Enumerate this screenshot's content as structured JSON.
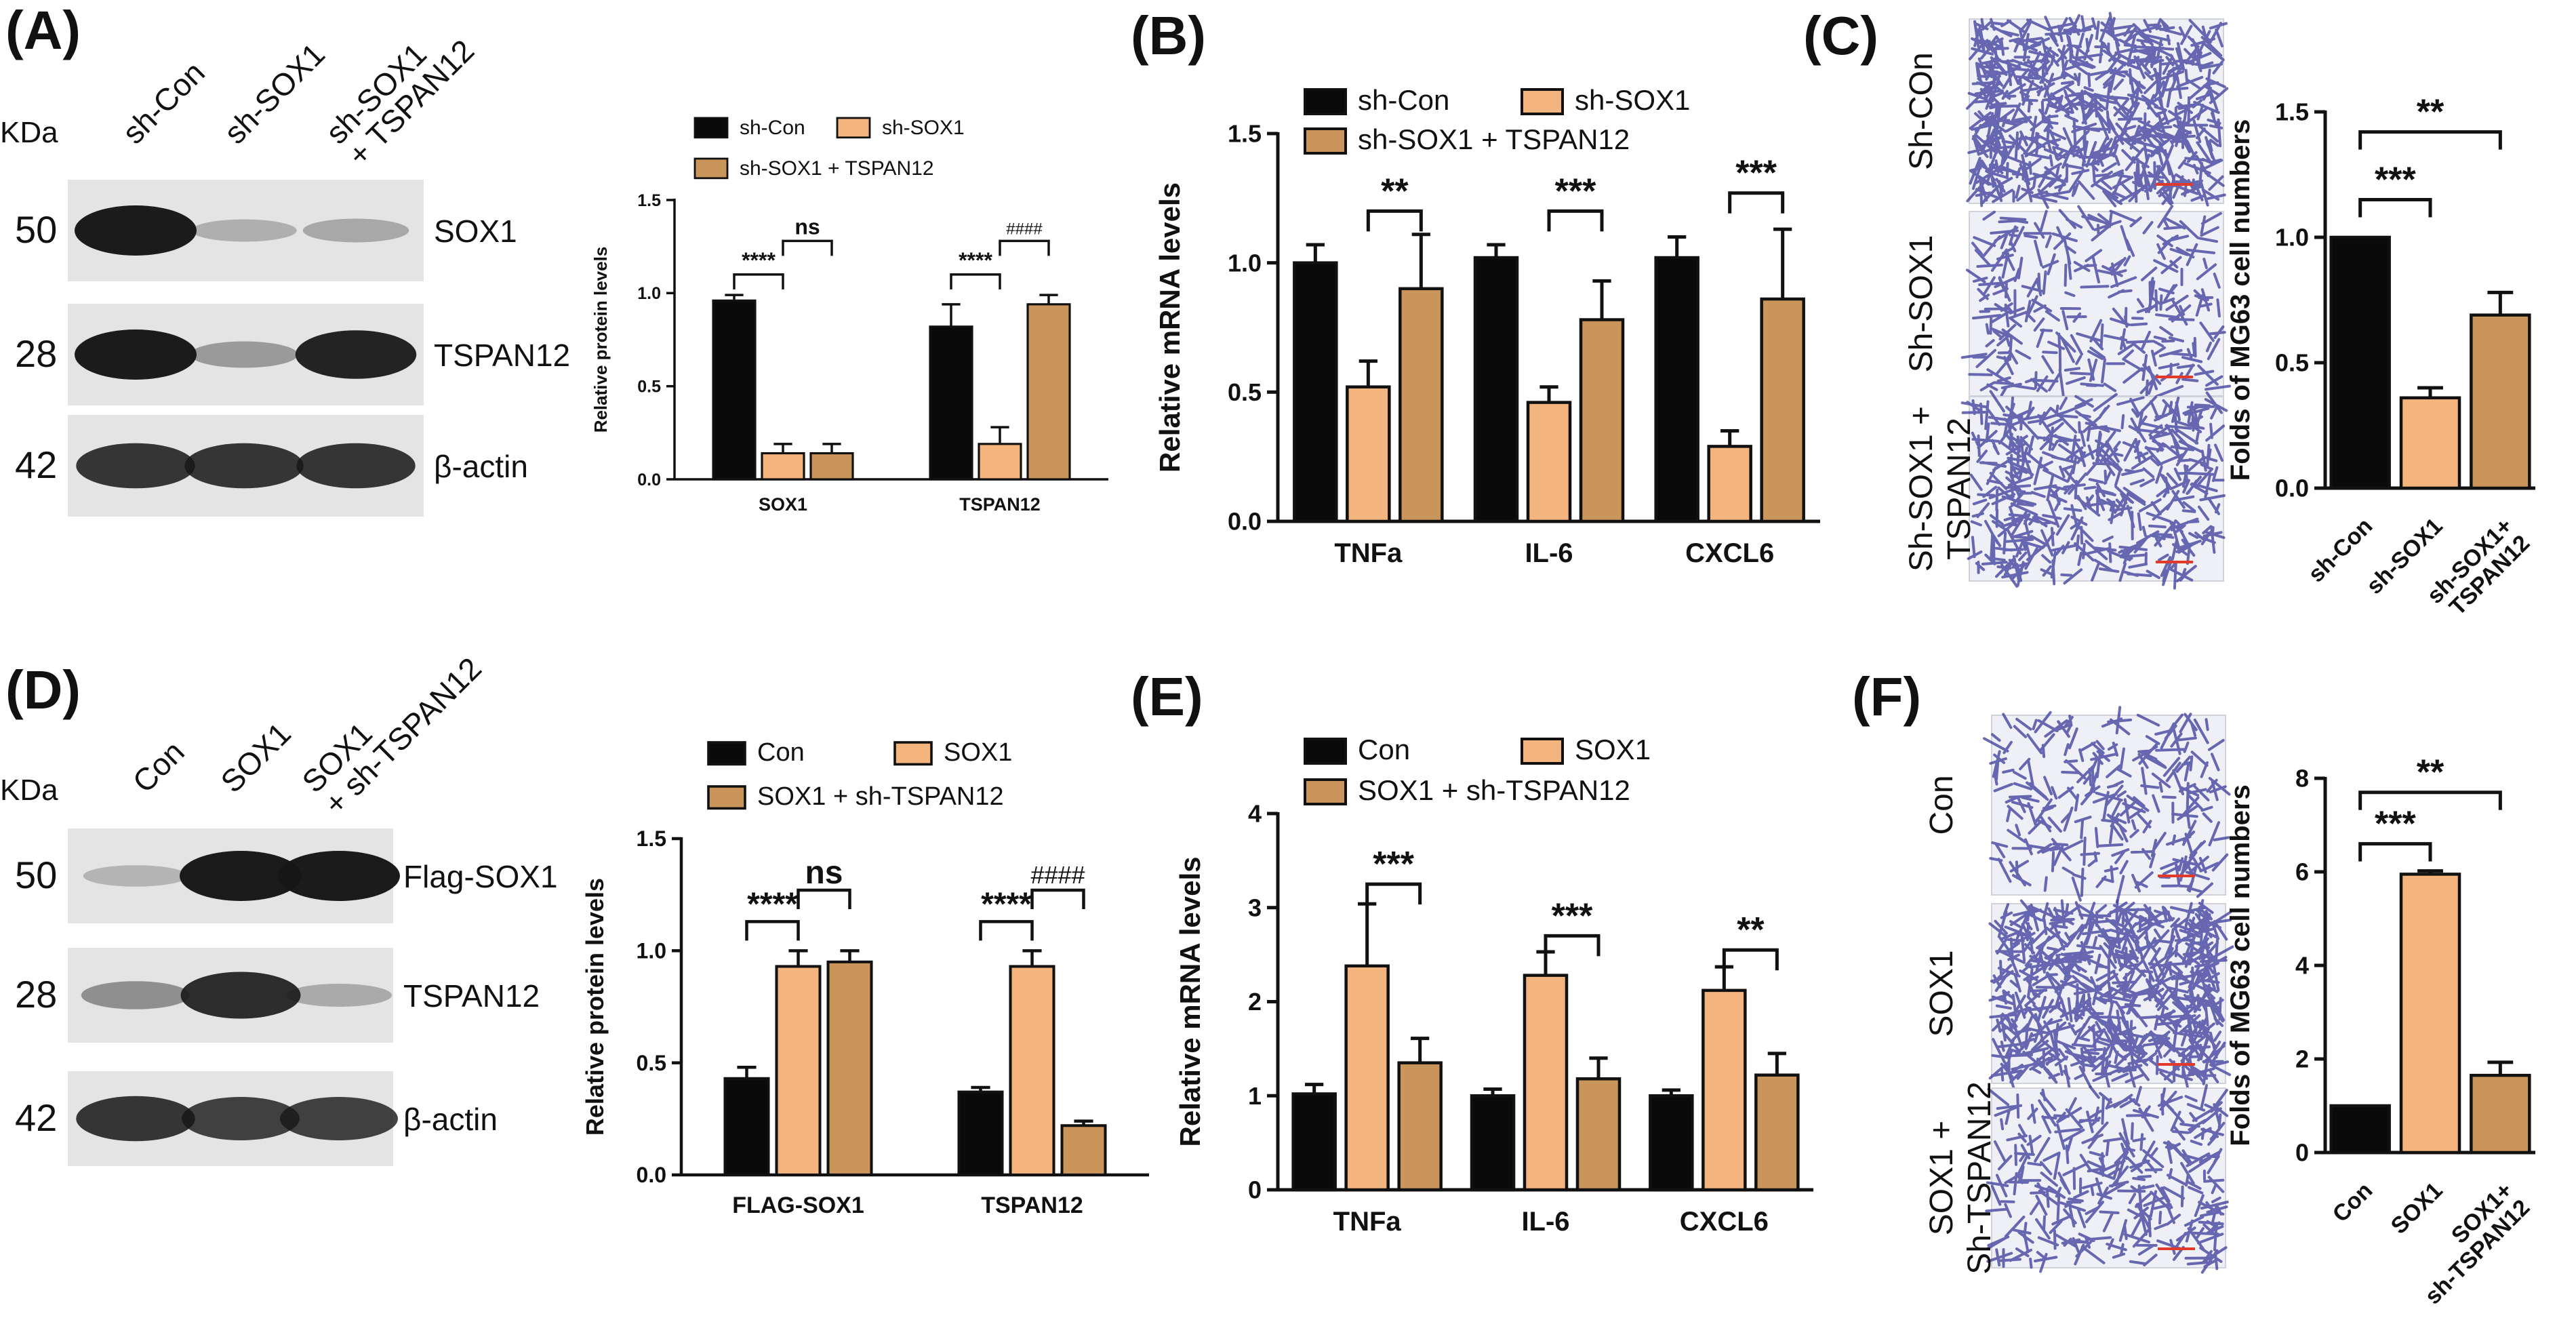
{
  "colors": {
    "black": "#0a0a0a",
    "light": "#f3b47e",
    "brown": "#c9955a",
    "membrane": "#e4e4e4",
    "band": "#161616",
    "stainBg": "#eef0f5",
    "stainCell": "#3a3a9a",
    "scalebar": "#e23a2a"
  },
  "panels": {
    "A": {
      "label": "(A)",
      "kda": "KDa",
      "lanes": [
        "sh-Con",
        "sh-SOX1",
        "sh-SOX1\n+ TSPAN12"
      ],
      "rows": [
        {
          "mw": "50",
          "name": "SOX1",
          "intensity": [
            1.0,
            0.18,
            0.22
          ]
        },
        {
          "mw": "28",
          "name": "TSPAN12",
          "intensity": [
            1.0,
            0.3,
            0.95
          ]
        },
        {
          "mw": "42",
          "name": "β-actin",
          "intensity": [
            0.85,
            0.85,
            0.85
          ]
        }
      ]
    },
    "D": {
      "label": "(D)",
      "kda": "KDa",
      "lanes": [
        "Con",
        "SOX1",
        "SOX1\n+ sh-TSPAN12"
      ],
      "rows": [
        {
          "mw": "50",
          "name": "Flag-SOX1",
          "intensity": [
            0.15,
            1.0,
            1.0
          ]
        },
        {
          "mw": "28",
          "name": "TSPAN12",
          "intensity": [
            0.35,
            0.9,
            0.2
          ]
        },
        {
          "mw": "42",
          "name": "β-actin",
          "intensity": [
            0.85,
            0.8,
            0.8
          ]
        }
      ]
    },
    "B": {
      "label": "(B)"
    },
    "C": {
      "label": "(C)",
      "images": [
        {
          "label": "Sh-COn",
          "density": 1.0
        },
        {
          "label": "Sh-SOX1",
          "density": 0.35
        },
        {
          "label": "Sh-SOX1 +\nTSPAN12",
          "density": 0.65
        }
      ]
    },
    "E": {
      "label": "(E)"
    },
    "F": {
      "label": "(F)",
      "images": [
        {
          "label": "Con",
          "density": 0.3
        },
        {
          "label": "SOX1",
          "density": 1.0
        },
        {
          "label": "SOX1 +\nSh-TSPAN12",
          "density": 0.4
        }
      ]
    }
  },
  "chart_data": [
    {
      "id": "A-bar",
      "type": "bar",
      "title": "",
      "categories": [
        "SOX1",
        "TSPAN12"
      ],
      "series": [
        {
          "name": "sh-Con",
          "color": "black",
          "values": [
            0.96,
            0.82
          ],
          "errors": [
            0.03,
            0.12
          ]
        },
        {
          "name": "sh-SOX1",
          "color": "light",
          "values": [
            0.14,
            0.19
          ],
          "errors": [
            0.05,
            0.09
          ]
        },
        {
          "name": "sh-SOX1 + TSPAN12",
          "color": "brown",
          "values": [
            0.14,
            0.94
          ],
          "errors": [
            0.05,
            0.05
          ]
        }
      ],
      "ylabel": "Relative protein levels",
      "xlabel": "",
      "ylim": [
        0,
        1.5
      ],
      "yticks": [
        "0.0",
        "0.5",
        "1.0",
        "1.5"
      ],
      "legend": {
        "layout": "top-two-rows"
      },
      "annotations": [
        {
          "text": "****",
          "cat": 0,
          "from": 0,
          "to": 1,
          "y": 1.1
        },
        {
          "text": "ns",
          "cat": 0,
          "from": 1,
          "to": 2,
          "y": 1.28
        },
        {
          "text": "****",
          "cat": 1,
          "from": 0,
          "to": 1,
          "y": 1.1
        },
        {
          "text": "####",
          "cat": 1,
          "from": 1,
          "to": 2,
          "y": 1.28
        }
      ]
    },
    {
      "id": "B-bar",
      "type": "bar",
      "title": "",
      "categories": [
        "TNFa",
        "IL-6",
        "CXCL6"
      ],
      "series": [
        {
          "name": "sh-Con",
          "color": "black",
          "values": [
            1.0,
            1.02,
            1.02
          ],
          "errors": [
            0.07,
            0.05,
            0.08
          ]
        },
        {
          "name": "sh-SOX1",
          "color": "light",
          "values": [
            0.52,
            0.46,
            0.29
          ],
          "errors": [
            0.1,
            0.06,
            0.06
          ]
        },
        {
          "name": "sh-SOX1 + TSPAN12",
          "color": "brown",
          "values": [
            0.9,
            0.78,
            0.86
          ],
          "errors": [
            0.21,
            0.15,
            0.27
          ]
        }
      ],
      "ylabel": "Relative mRNA levels",
      "xlabel": "",
      "ylim": [
        0,
        1.5
      ],
      "yticks": [
        "0.0",
        "0.5",
        "1.0",
        "1.5"
      ],
      "legend": {
        "layout": "top-two-rows"
      },
      "annotations": [
        {
          "text": "**",
          "cat": 0,
          "from": 1,
          "to": 2,
          "y": 1.2
        },
        {
          "text": "***",
          "cat": 1,
          "from": 1,
          "to": 2,
          "y": 1.2
        },
        {
          "text": "***",
          "cat": 2,
          "from": 1,
          "to": 2,
          "y": 1.27
        }
      ]
    },
    {
      "id": "C-bar",
      "type": "bar",
      "title": "",
      "categories": [
        "sh-Con",
        "sh-SOX1",
        "sh-SOX1+\nTSPAN12"
      ],
      "values": [
        1.0,
        0.36,
        0.69
      ],
      "errors": [
        0.0,
        0.04,
        0.09
      ],
      "colors": [
        "black",
        "light",
        "brown"
      ],
      "ylabel": "Folds of MG63 cell numbers",
      "xlabel": "",
      "ylim": [
        0,
        1.5
      ],
      "yticks": [
        "0.0",
        "0.5",
        "1.0",
        "1.5"
      ],
      "annotations": [
        {
          "text": "***",
          "from": 0,
          "to": 1,
          "y": 1.15
        },
        {
          "text": "**",
          "from": 0,
          "to": 2,
          "y": 1.42
        }
      ]
    },
    {
      "id": "D-bar",
      "type": "bar",
      "title": "",
      "categories": [
        "FLAG-SOX1",
        "TSPAN12"
      ],
      "series": [
        {
          "name": "Con",
          "color": "black",
          "values": [
            0.43,
            0.37
          ],
          "errors": [
            0.05,
            0.02
          ]
        },
        {
          "name": "SOX1",
          "color": "light",
          "values": [
            0.93,
            0.93
          ],
          "errors": [
            0.07,
            0.07
          ]
        },
        {
          "name": "SOX1 + sh-TSPAN12",
          "color": "brown",
          "values": [
            0.95,
            0.22
          ],
          "errors": [
            0.05,
            0.02
          ]
        }
      ],
      "ylabel": "Relative protein levels",
      "xlabel": "",
      "ylim": [
        0,
        1.5
      ],
      "yticks": [
        "0.0",
        "0.5",
        "1.0",
        "1.5"
      ],
      "legend": {
        "layout": "top-two-rows"
      },
      "annotations": [
        {
          "text": "****",
          "cat": 0,
          "from": 0,
          "to": 1,
          "y": 1.13
        },
        {
          "text": "ns",
          "cat": 0,
          "from": 1,
          "to": 2,
          "y": 1.27
        },
        {
          "text": "****",
          "cat": 1,
          "from": 0,
          "to": 1,
          "y": 1.13
        },
        {
          "text": "####",
          "cat": 1,
          "from": 1,
          "to": 2,
          "y": 1.27
        }
      ]
    },
    {
      "id": "E-bar",
      "type": "bar",
      "title": "",
      "categories": [
        "TNFa",
        "IL-6",
        "CXCL6"
      ],
      "series": [
        {
          "name": "Con",
          "color": "black",
          "values": [
            1.02,
            1.0,
            1.0
          ],
          "errors": [
            0.1,
            0.07,
            0.06
          ]
        },
        {
          "name": "SOX1",
          "color": "light",
          "values": [
            2.38,
            2.28,
            2.12
          ],
          "errors": [
            0.66,
            0.25,
            0.25
          ]
        },
        {
          "name": "SOX1 + sh-TSPAN12",
          "color": "brown",
          "values": [
            1.35,
            1.18,
            1.22
          ],
          "errors": [
            0.26,
            0.22,
            0.23
          ]
        }
      ],
      "ylabel": "Relative mRNA levels",
      "xlabel": "",
      "ylim": [
        0,
        4
      ],
      "yticks": [
        "0",
        "1",
        "2",
        "3",
        "4"
      ],
      "legend": {
        "layout": "top-two-rows"
      },
      "annotations": [
        {
          "text": "***",
          "cat": 0,
          "from": 1,
          "to": 2,
          "y": 3.25
        },
        {
          "text": "***",
          "cat": 1,
          "from": 1,
          "to": 2,
          "y": 2.7
        },
        {
          "text": "**",
          "cat": 2,
          "from": 1,
          "to": 2,
          "y": 2.55
        }
      ]
    },
    {
      "id": "F-bar",
      "type": "bar",
      "title": "",
      "categories": [
        "Con",
        "SOX1",
        "SOX1+\nsh-TSPAN12"
      ],
      "values": [
        1.0,
        5.95,
        1.65
      ],
      "errors": [
        0.0,
        0.07,
        0.28
      ],
      "colors": [
        "black",
        "light",
        "brown"
      ],
      "ylabel": "Folds of MG63 cell numbers",
      "xlabel": "",
      "ylim": [
        0,
        8
      ],
      "yticks": [
        "0",
        "2",
        "4",
        "6",
        "8"
      ],
      "annotations": [
        {
          "text": "***",
          "from": 0,
          "to": 1,
          "y": 6.6
        },
        {
          "text": "**",
          "from": 0,
          "to": 2,
          "y": 7.7
        }
      ]
    }
  ]
}
